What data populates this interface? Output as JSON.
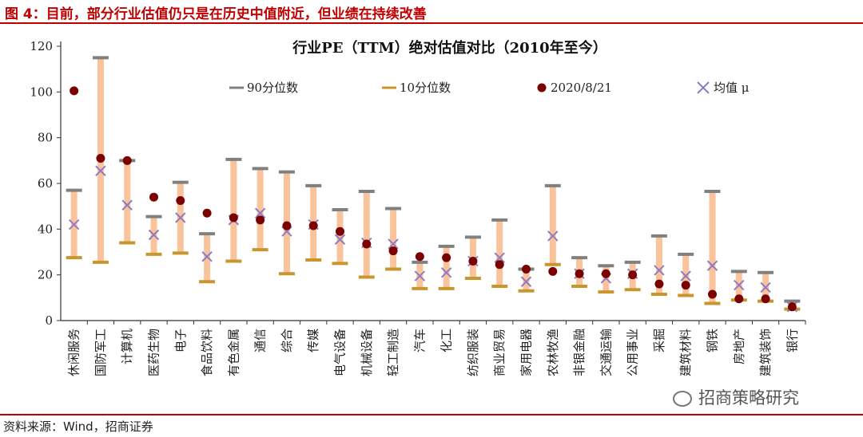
{
  "figure_title": "图 4：目前，部分行业估值仍只是在历史中值附近，但业绩在持续改善",
  "source": "资料来源：Wind，招商证券",
  "watermark": "招商策略研究",
  "chart_data": {
    "type": "range-error",
    "title": "行业PE（TTM）绝对估值对比（2010年至今）",
    "xlabel": "",
    "ylabel": "",
    "ylim": [
      0,
      120
    ],
    "yticks": [
      0,
      20,
      40,
      60,
      80,
      100,
      120
    ],
    "grid": false,
    "legend_placement": "top",
    "colors": {
      "range_bar": "#f9c49c",
      "p90": "#808080",
      "p10": "#c8962d",
      "current": "#7b0000",
      "mean": "#8e7cc3"
    },
    "legend": {
      "p90": "90分位数",
      "p10": "10分位数",
      "current": "2020/8/21",
      "mean": "均值 μ"
    },
    "categories": [
      "休闲服务",
      "国防军工",
      "计算机",
      "医药生物",
      "电子",
      "食品饮料",
      "有色金属",
      "通信",
      "综合",
      "传媒",
      "电气设备",
      "机械设备",
      "轻工制造",
      "汽车",
      "化工",
      "纺织服装",
      "商业贸易",
      "家用电器",
      "农林牧渔",
      "非银金融",
      "交通运输",
      "公用事业",
      "采掘",
      "建筑材料",
      "钢铁",
      "房地产",
      "建筑装饰",
      "银行"
    ],
    "series": [
      {
        "name": "90分位数",
        "values": [
          57,
          115,
          70,
          45.5,
          60.5,
          38,
          70.5,
          66.5,
          65,
          59,
          48.5,
          56.5,
          49,
          25.5,
          32.5,
          36.5,
          44,
          22.5,
          59,
          27.5,
          24,
          25.5,
          37,
          29,
          56.5,
          21.5,
          21,
          8.5
        ]
      },
      {
        "name": "10分位数",
        "values": [
          27.5,
          25.5,
          34,
          29,
          29.5,
          17,
          26,
          31,
          20.5,
          26.5,
          25,
          19,
          22.5,
          14,
          14,
          18.5,
          15,
          13,
          24.5,
          15,
          12.5,
          13.5,
          11.5,
          11,
          7.5,
          9,
          8.5,
          5
        ]
      },
      {
        "name": "2020/8/21",
        "values": [
          100.5,
          71,
          70,
          54,
          52.5,
          47,
          45,
          44,
          41.5,
          41.5,
          39,
          33.5,
          30.5,
          28,
          27.5,
          26,
          24.5,
          22.5,
          21.5,
          20.5,
          20.5,
          20,
          16,
          15.5,
          11.5,
          9.5,
          9.5,
          6
        ]
      },
      {
        "name": "均值 μ",
        "values": [
          42,
          65.5,
          50.5,
          37.5,
          45,
          28,
          44,
          47,
          39,
          42,
          35.5,
          34,
          33.5,
          19.5,
          21,
          26,
          27.5,
          17,
          37,
          20.5,
          18.5,
          20.5,
          22,
          19.5,
          24,
          15.5,
          14.5,
          6
        ]
      }
    ]
  }
}
